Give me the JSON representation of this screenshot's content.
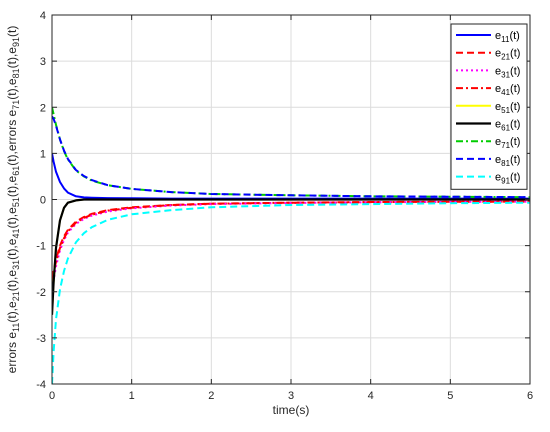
{
  "chart_data": {
    "type": "line",
    "xlabel": "time(s)",
    "ylabel": "errors e11(t),e21(t),e31(t),e41(t),e51(t),e61(t),errors e71(t),e81(t),e91(t)",
    "xlim": [
      0,
      6
    ],
    "ylim": [
      -4,
      4
    ],
    "xticks": [
      "0",
      "1",
      "2",
      "3",
      "4",
      "5",
      "6"
    ],
    "yticks": [
      "-4",
      "-3",
      "-2",
      "-1",
      "0",
      "1",
      "2",
      "3",
      "4"
    ],
    "grid": true,
    "legend_position": "top-right",
    "x": [
      0,
      0.02,
      0.05,
      0.1,
      0.15,
      0.2,
      0.3,
      0.4,
      0.5,
      0.7,
      1.0,
      1.5,
      2.0,
      3.0,
      4.0,
      5.0,
      6.0
    ],
    "series": [
      {
        "name": "e11(t)",
        "color": "#0000ff",
        "dash": "solid",
        "width": 2,
        "values": [
          1.0,
          0.82,
          0.6,
          0.38,
          0.24,
          0.15,
          0.07,
          0.045,
          0.04,
          0.03,
          0.025,
          0.02,
          0.02,
          0.02,
          0.02,
          0.02,
          0.02
        ]
      },
      {
        "name": "e21(t)",
        "color": "#ff0000",
        "dash": "dashed",
        "width": 2,
        "values": [
          -1.7,
          -1.55,
          -1.3,
          -1.0,
          -0.8,
          -0.66,
          -0.48,
          -0.38,
          -0.31,
          -0.23,
          -0.17,
          -0.12,
          -0.09,
          -0.07,
          -0.06,
          -0.05,
          -0.045
        ]
      },
      {
        "name": "e31(t)",
        "color": "#ff00ff",
        "dash": "dotted",
        "width": 2,
        "values": [
          -2.0,
          -1.75,
          -1.45,
          -1.1,
          -0.88,
          -0.72,
          -0.53,
          -0.42,
          -0.35,
          -0.26,
          -0.19,
          -0.13,
          -0.1,
          -0.075,
          -0.06,
          -0.05,
          -0.045
        ]
      },
      {
        "name": "e41(t)",
        "color": "#ff0000",
        "dash": "dashdot",
        "width": 2,
        "values": [
          -1.8,
          -1.6,
          -1.35,
          -1.05,
          -0.84,
          -0.69,
          -0.5,
          -0.4,
          -0.33,
          -0.24,
          -0.18,
          -0.12,
          -0.09,
          -0.07,
          -0.055,
          -0.05,
          -0.045
        ]
      },
      {
        "name": "e51(t)",
        "color": "#ffff00",
        "dash": "solid",
        "width": 2,
        "values": [
          -2.5,
          -1.8,
          -1.05,
          -0.45,
          -0.18,
          -0.07,
          -0.02,
          0.0,
          0.0,
          0.0,
          0.0,
          0.0,
          0.0,
          0.0,
          0.0,
          0.0,
          0.0
        ]
      },
      {
        "name": "e61(t)",
        "color": "#000000",
        "dash": "solid",
        "width": 2.2,
        "values": [
          -2.5,
          -1.8,
          -1.05,
          -0.45,
          -0.18,
          -0.07,
          -0.02,
          0.0,
          0.0,
          0.0,
          0.0,
          0.0,
          0.0,
          0.0,
          0.0,
          0.0,
          0.0
        ]
      },
      {
        "name": "e71(t)",
        "color": "#00cc00",
        "dash": "dashdot",
        "width": 2,
        "values": [
          2.0,
          1.85,
          1.62,
          1.3,
          1.05,
          0.87,
          0.63,
          0.5,
          0.41,
          0.31,
          0.23,
          0.16,
          0.12,
          0.09,
          0.07,
          0.06,
          0.05
        ]
      },
      {
        "name": "e81(t)",
        "color": "#0000ff",
        "dash": "dashed",
        "width": 2,
        "values": [
          1.8,
          1.75,
          1.6,
          1.3,
          1.06,
          0.88,
          0.64,
          0.51,
          0.42,
          0.31,
          0.23,
          0.16,
          0.12,
          0.09,
          0.07,
          0.06,
          0.05
        ]
      },
      {
        "name": "e91(t)",
        "color": "#00ffff",
        "dash": "dashed",
        "width": 2,
        "values": [
          -4.0,
          -3.3,
          -2.6,
          -1.95,
          -1.55,
          -1.28,
          -0.93,
          -0.73,
          -0.6,
          -0.44,
          -0.32,
          -0.23,
          -0.17,
          -0.12,
          -0.1,
          -0.08,
          -0.07
        ]
      }
    ]
  }
}
